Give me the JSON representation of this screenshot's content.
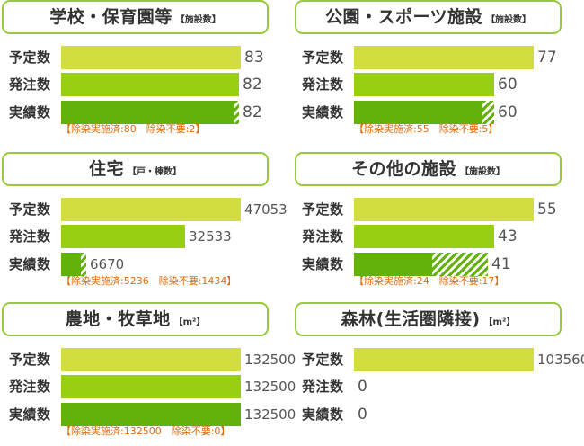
{
  "row_labels": {
    "plan": "予定数",
    "order": "発注数",
    "done": "実績数"
  },
  "colors": {
    "plan": "#d2de3f",
    "order": "#98cf13",
    "done": "#63b10b",
    "note": "#e36c0a",
    "header_border": "#97c93a"
  },
  "chart_data": [
    {
      "type": "bar",
      "title": "学校・保育園等",
      "unit": "【施設数】",
      "categories": [
        "予定数",
        "発注数",
        "実績数"
      ],
      "values": [
        83,
        82,
        82
      ],
      "value_labels": [
        "83",
        "82",
        "82"
      ],
      "done_breakdown": {
        "decontaminated": 80,
        "not_required": 2
      },
      "note": "【除染実施済:80　除染不要:2】"
    },
    {
      "type": "bar",
      "title": "公園・スポーツ施設",
      "unit": "【施設数】",
      "categories": [
        "予定数",
        "発注数",
        "実績数"
      ],
      "values": [
        77,
        60,
        60
      ],
      "value_labels": [
        "77",
        "60",
        "60"
      ],
      "done_breakdown": {
        "decontaminated": 55,
        "not_required": 5
      },
      "note": "【除染実施済:55　除染不要:5】"
    },
    {
      "type": "bar",
      "title": "住宅",
      "unit": "【戸・棟数】",
      "categories": [
        "予定数",
        "発注数",
        "実績数"
      ],
      "values": [
        47053,
        32533,
        6670
      ],
      "value_labels": [
        "47053",
        "32533",
        "6670"
      ],
      "done_breakdown": {
        "decontaminated": 5236,
        "not_required": 1434
      },
      "note": "【除染実施済:5236　除染不要:1434】"
    },
    {
      "type": "bar",
      "title": "その他の施設",
      "unit": "【施設数】",
      "categories": [
        "予定数",
        "発注数",
        "実績数"
      ],
      "values": [
        55,
        43,
        41
      ],
      "value_labels": [
        "55",
        "43",
        "41"
      ],
      "done_breakdown": {
        "decontaminated": 24,
        "not_required": 17
      },
      "note": "【除染実施済:24　除染不要:17】"
    },
    {
      "type": "bar",
      "title": "農地・牧草地",
      "unit": "【m²】",
      "categories": [
        "予定数",
        "発注数",
        "実績数"
      ],
      "values": [
        132500,
        132500,
        132500
      ],
      "value_labels": [
        "132500",
        "132500",
        "132500"
      ],
      "done_breakdown": {
        "decontaminated": 132500,
        "not_required": 0
      },
      "note": "【除染実施済:132500　除染不要:0】"
    },
    {
      "type": "bar",
      "title": "森林(生活圏隣接)",
      "unit": "【m²】",
      "categories": [
        "予定数",
        "発注数",
        "実績数"
      ],
      "values": [
        103560,
        0,
        0
      ],
      "value_labels": [
        "103560",
        "0",
        "0"
      ],
      "done_breakdown": null,
      "note": ""
    }
  ]
}
